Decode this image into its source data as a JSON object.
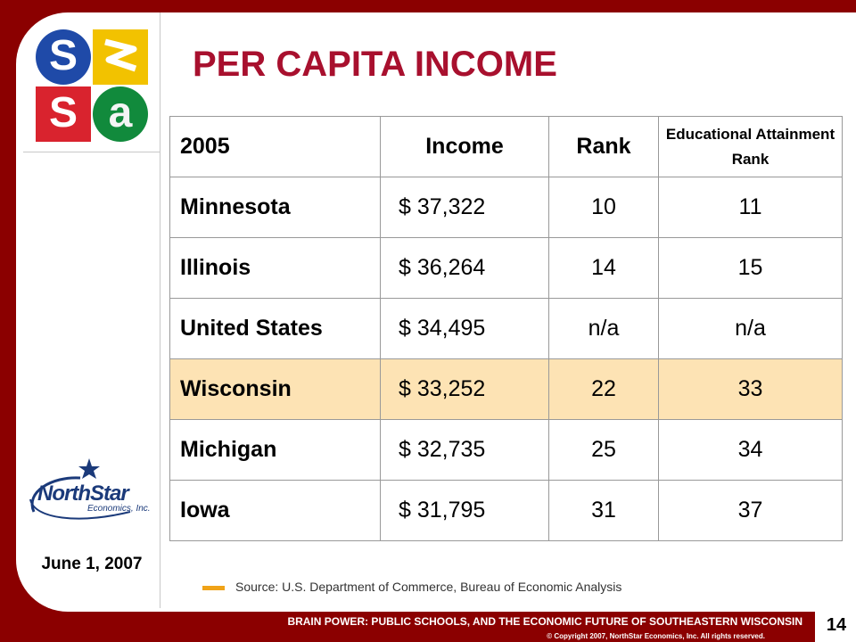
{
  "slide": {
    "title": "PER CAPITA INCOME",
    "date": "June 1, 2007",
    "source": "Source: U.S. Department of Commerce, Bureau of Economic Analysis",
    "footer_title": "BRAIN POWER: PUBLIC SCHOOLS, AND THE ECONOMIC FUTURE OF SOUTHEASTERN WISCONSIN",
    "footer_copyright": "© Copyright 2007, NorthStar Economics, Inc. All rights reserved.",
    "page_number": "14"
  },
  "logos": {
    "sasa": {
      "letters": [
        "S",
        "",
        "S",
        "a"
      ]
    },
    "northstar": {
      "name": "NorthStar",
      "sub": "Economics, Inc."
    }
  },
  "table": {
    "headers": [
      "2005",
      "Income",
      "Rank",
      "Educational Attainment Rank"
    ],
    "rows": [
      {
        "state": "Minnesota",
        "income": "$ 37,322",
        "rank": "10",
        "edu_rank": "11"
      },
      {
        "state": "Illinois",
        "income": "$ 36,264",
        "rank": "14",
        "edu_rank": "15"
      },
      {
        "state": "United States",
        "income": "$ 34,495",
        "rank": "n/a",
        "edu_rank": "n/a"
      },
      {
        "state": "Wisconsin",
        "income": "$ 33,252",
        "rank": "22",
        "edu_rank": "33"
      },
      {
        "state": "Michigan",
        "income": "$ 32,735",
        "rank": "25",
        "edu_rank": "34"
      },
      {
        "state": "Iowa",
        "income": "$ 31,795",
        "rank": "31",
        "edu_rank": "37"
      }
    ]
  },
  "colors": {
    "frame": "#8b0000",
    "title": "#a8102e",
    "year_header": "#e07b00",
    "highlight_row": "#fde3b4",
    "source_marker": "#f0a318"
  }
}
